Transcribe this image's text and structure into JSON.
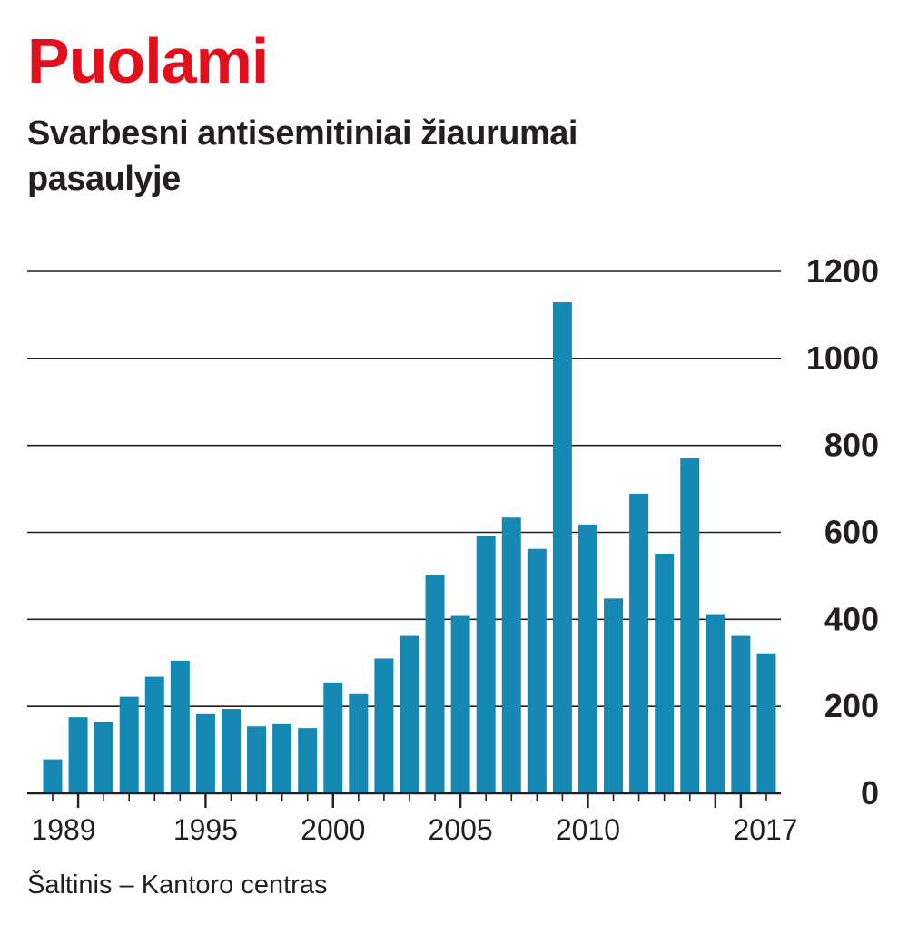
{
  "header": {
    "title": "Puolami",
    "subtitle": "Svarbesni antisemitiniai žiaurumai pasaulyje"
  },
  "footer": {
    "source": "Šaltinis – Kantoro centras"
  },
  "colors": {
    "title": "#e3101b",
    "bar": "#1688b4",
    "text": "#231f20",
    "grid": "#231f20"
  },
  "chart_data": {
    "type": "bar",
    "title": "Svarbesni antisemitiniai žiaurumai pasaulyje",
    "xlabel": "",
    "ylabel": "",
    "categories": [
      1989,
      1990,
      1991,
      1992,
      1993,
      1994,
      1995,
      1996,
      1997,
      1998,
      1999,
      2000,
      2001,
      2002,
      2003,
      2004,
      2005,
      2006,
      2007,
      2008,
      2009,
      2010,
      2011,
      2012,
      2013,
      2014,
      2015,
      2016,
      2017
    ],
    "values": [
      78,
      175,
      165,
      222,
      268,
      305,
      182,
      194,
      154,
      159,
      150,
      255,
      228,
      310,
      362,
      502,
      408,
      592,
      634,
      562,
      1129,
      618,
      448,
      689,
      551,
      770,
      412,
      362,
      322
    ],
    "ylim": [
      0,
      1200
    ],
    "yticks": [
      0,
      200,
      400,
      600,
      800,
      1000,
      1200
    ],
    "xticks_labeled": [
      1989,
      1995,
      2000,
      2005,
      2010,
      2017
    ],
    "y_axis_side": "right",
    "grid": true,
    "legend": "none"
  }
}
